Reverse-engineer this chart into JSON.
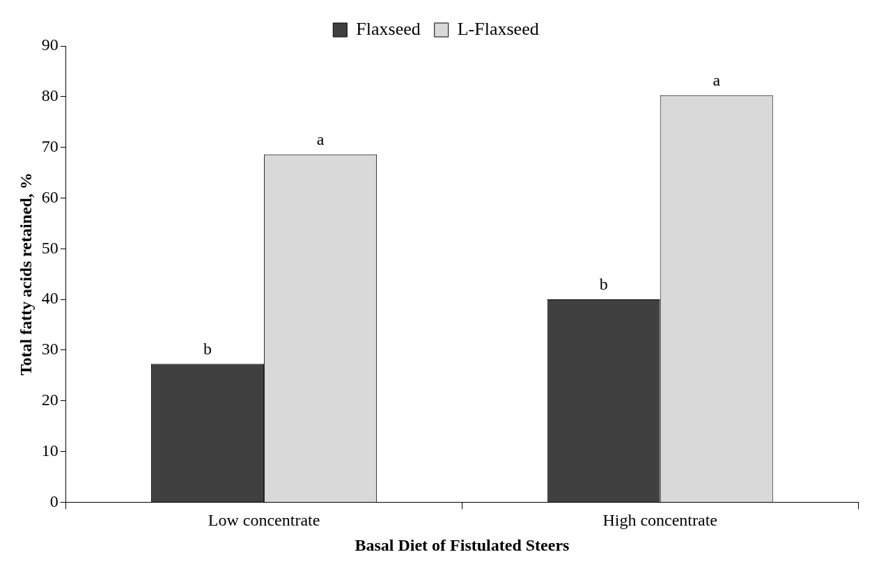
{
  "chart_data": {
    "type": "bar",
    "xlabel": "Basal Diet of Fistulated Steers",
    "ylabel": "Total fatty acids retained, %",
    "categories": [
      "Low concentrate",
      "High concentrate"
    ],
    "series": [
      {
        "name": "Flaxseed",
        "color": "#404040",
        "values": [
          27.3,
          40.0
        ],
        "value_labels": [
          "b",
          "b"
        ]
      },
      {
        "name": "L-Flaxseed",
        "color": "#d9d9d9",
        "values": [
          68.6,
          80.3
        ],
        "value_labels": [
          "a",
          "a"
        ]
      }
    ],
    "ylim": [
      0,
      90
    ],
    "yticks": [
      0,
      10,
      20,
      30,
      40,
      50,
      60,
      70,
      80,
      90
    ],
    "grid": false,
    "legend": "top"
  }
}
